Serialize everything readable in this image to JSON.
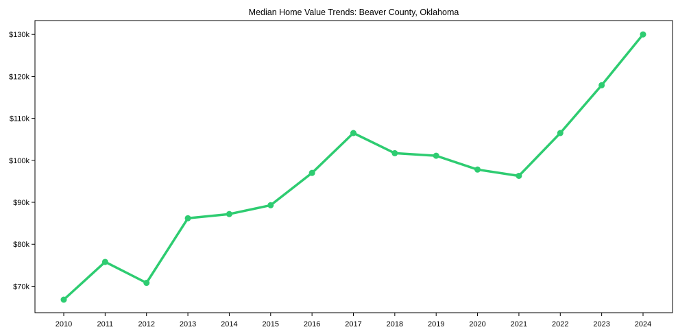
{
  "chart_data": {
    "type": "line",
    "title": "Median Home Value Trends: Beaver County, Oklahoma",
    "xlabel": "",
    "ylabel": "",
    "categories": [
      "2010",
      "2011",
      "2012",
      "2013",
      "2014",
      "2015",
      "2016",
      "2017",
      "2018",
      "2019",
      "2020",
      "2021",
      "2022",
      "2023",
      "2024"
    ],
    "series": [
      {
        "name": "Median Home Value",
        "color": "#2ecc71",
        "values": [
          66800,
          75800,
          70800,
          86200,
          87200,
          89300,
          97000,
          106500,
          101700,
          101100,
          97800,
          96300,
          106500,
          117900,
          130000
        ]
      }
    ],
    "ylim": [
      63700,
      133300
    ],
    "yticks": [
      70000,
      80000,
      90000,
      100000,
      110000,
      120000,
      130000
    ],
    "ytick_labels": [
      "$70k",
      "$80k",
      "$90k",
      "$100k",
      "$110k",
      "$120k",
      "$130k"
    ],
    "grid": false,
    "legend": null
  }
}
